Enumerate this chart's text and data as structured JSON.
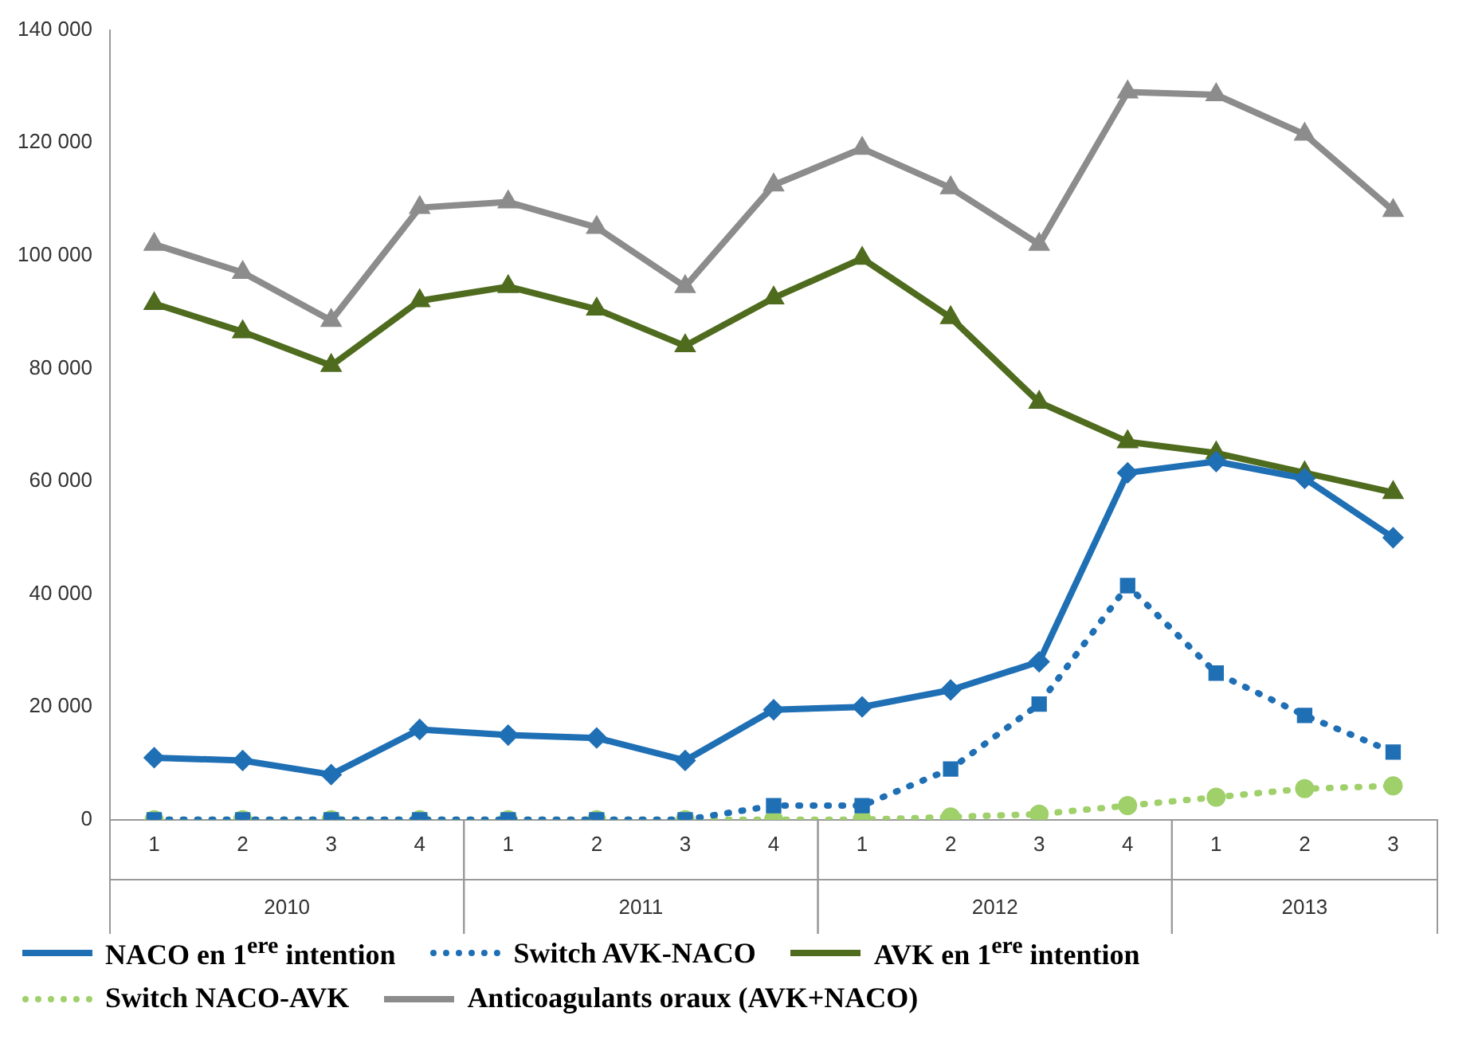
{
  "chart_data": {
    "type": "line",
    "categories": [
      "1",
      "2",
      "3",
      "4",
      "1",
      "2",
      "3",
      "4",
      "1",
      "2",
      "3",
      "4",
      "1",
      "2",
      "3"
    ],
    "annotations": [
      "2010",
      "2011",
      "2012",
      "2013"
    ],
    "series": [
      {
        "name": "NACO en 1$^{ere}$ intention",
        "color": "#1f6fb5",
        "marker": "diamond",
        "line_style": "solid",
        "values": [
          11000,
          10500,
          8000,
          16000,
          15000,
          14500,
          10500,
          19500,
          20000,
          23000,
          28000,
          61500,
          63500,
          60500,
          50000
        ]
      },
      {
        "name": "Switch AVK-NACO",
        "color": "#1f6fb5",
        "marker": "square",
        "line_style": "dotted",
        "values": [
          0,
          0,
          0,
          0,
          0,
          0,
          0,
          2500,
          2500,
          9000,
          20500,
          41500,
          26000,
          18500,
          12000
        ]
      },
      {
        "name": "AVK en 1$^{ere}$ intention",
        "color": "#4e6b1e",
        "marker": "triangle",
        "line_style": "solid",
        "values": [
          91500,
          86500,
          80500,
          92000,
          94500,
          90500,
          84000,
          92500,
          99500,
          89000,
          74000,
          67000,
          65000,
          61500,
          58000
        ]
      },
      {
        "name": "Switch NACO-AVK",
        "color": "#9fd06a",
        "marker": "circle",
        "line_style": "dotted",
        "values": [
          0,
          0,
          0,
          0,
          0,
          0,
          0,
          0,
          0,
          500,
          1000,
          2500,
          4000,
          5500,
          6000
        ]
      },
      {
        "name": "Anticoagulants oraux (AVK+NACO)",
        "color": "#8c8c8c",
        "marker": "triangle",
        "line_style": "solid",
        "values": [
          102000,
          97000,
          88500,
          108500,
          109500,
          105000,
          94500,
          112500,
          119000,
          112000,
          102000,
          129000,
          128500,
          121500,
          108000
        ]
      }
    ],
    "ylim": [
      0,
      140000
    ],
    "yticks": [
      0,
      20000,
      40000,
      60000,
      80000,
      100000,
      120000,
      140000
    ],
    "grid": false,
    "legend": "bottom"
  }
}
